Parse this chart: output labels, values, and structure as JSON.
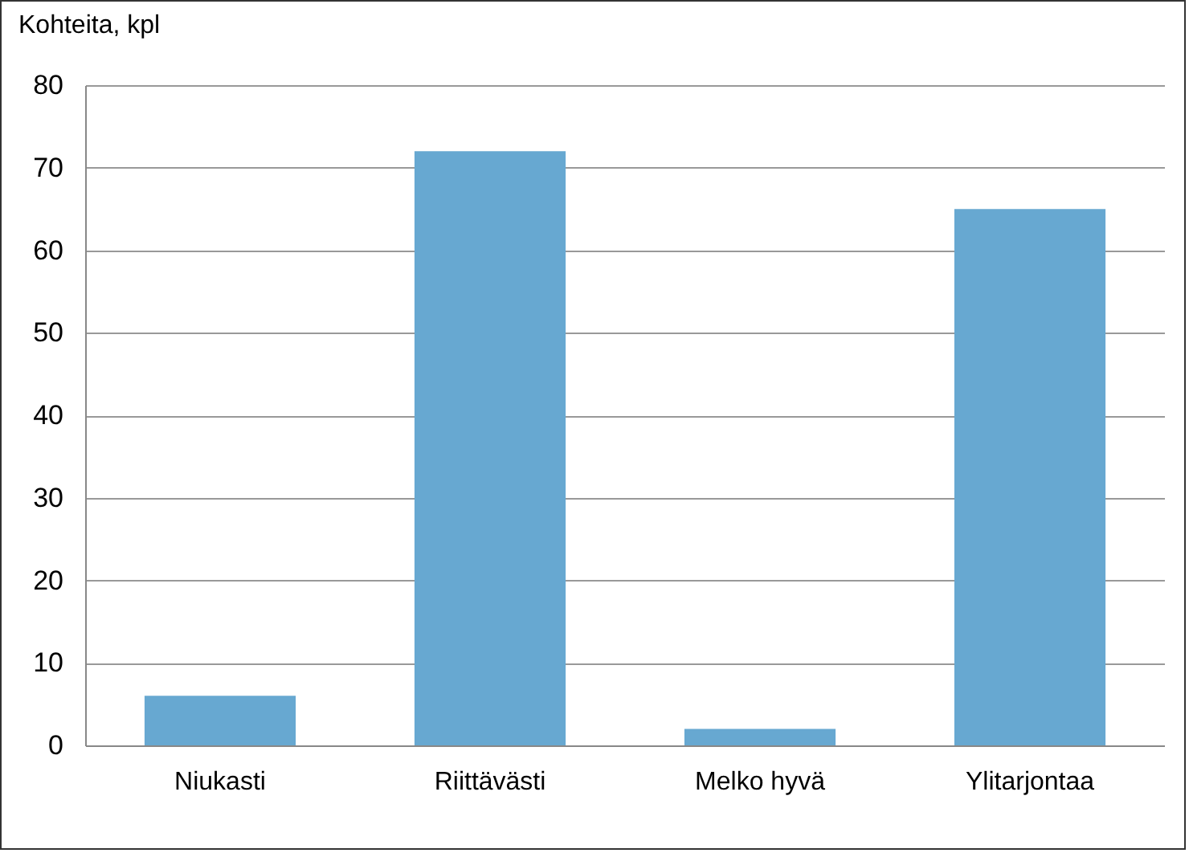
{
  "chart_data": {
    "type": "bar",
    "ylabel": "Kohteita, kpl",
    "categories": [
      "Niukasti",
      "Riittävästi",
      "Melko hyvä",
      "Ylitarjontaa"
    ],
    "values": [
      6,
      72,
      2,
      65
    ],
    "color": "#67a8d1",
    "ylim": [
      0,
      80
    ],
    "yticks": [
      0,
      10,
      20,
      30,
      40,
      50,
      60,
      70,
      80
    ],
    "grid": "y"
  }
}
